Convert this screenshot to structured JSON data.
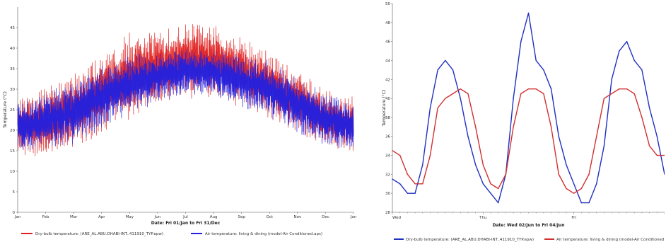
{
  "chart_data": [
    {
      "type": "line",
      "id": "annual",
      "xlabel": "Date: Fri 01/Jan to Fri 31/Dec",
      "ylabel": "Temperature (°C)",
      "ylim": [
        0,
        50
      ],
      "yticks": [
        0,
        5,
        10,
        15,
        20,
        25,
        30,
        35,
        40,
        45
      ],
      "categories": [
        "Jan",
        "Feb",
        "Mar",
        "Apr",
        "May",
        "Jun",
        "Jul",
        "Aug",
        "Sep",
        "Oct",
        "Nov",
        "Dec",
        "Jan"
      ],
      "grid": false,
      "legend_position": "bottom",
      "series": [
        {
          "name": "Dry-bulb temperature: (ARE_AL.ABU.DHABI-INT..411910_TYP.epw)",
          "color": "#e02020",
          "monthly_mean": [
            21,
            22,
            25,
            29,
            33,
            35,
            37,
            37,
            34,
            31,
            27,
            23,
            21
          ],
          "monthly_amplitude": [
            5,
            6,
            6.5,
            7,
            7.5,
            7,
            6.5,
            6.5,
            6,
            6,
            5.5,
            5,
            5
          ]
        },
        {
          "name": "Air temperature: living & dining (model-Air Conditioned.aps)",
          "color": "#2020e0",
          "monthly_mean": [
            21,
            22,
            24.5,
            28,
            31,
            33,
            34.5,
            34,
            32,
            30,
            26.5,
            22.5,
            21
          ],
          "monthly_amplitude": [
            4.5,
            5,
            5.5,
            5.5,
            5,
            4.5,
            4,
            4,
            4.5,
            5,
            5,
            4.5,
            4.5
          ]
        }
      ]
    },
    {
      "type": "line",
      "id": "three-day",
      "xlabel": "Date: Wed 02/Jun to Fri 04/Jun",
      "ylabel": "Temperature (°C)",
      "ylim": [
        28,
        50
      ],
      "yticks": [
        28,
        30,
        32,
        34,
        36,
        38,
        40,
        42,
        44,
        46,
        48,
        50
      ],
      "categories": [
        "Wed",
        "Thu",
        "Fri"
      ],
      "x": [
        0,
        0.0833,
        0.1667,
        0.25,
        0.3333,
        0.4167,
        0.5,
        0.5833,
        0.6667,
        0.75,
        0.8333,
        0.9167,
        1.0,
        1.0833,
        1.1667,
        1.25,
        1.3333,
        1.4167,
        1.5,
        1.5833,
        1.6667,
        1.75,
        1.8333,
        1.9167,
        2.0,
        2.0833,
        2.1667,
        2.25,
        2.3333,
        2.4167,
        2.5,
        2.5833,
        2.6667,
        2.75,
        2.8333,
        2.9167,
        3.0
      ],
      "grid": false,
      "legend_position": "bottom",
      "series": [
        {
          "name": "Dry-bulb temperature: (ARE_AL.ABU.DHABI-INT..411910_TYP.epw)",
          "color": "#2030c0",
          "values": [
            31.5,
            31,
            30,
            30,
            33,
            39,
            43,
            44,
            43,
            40,
            36,
            33,
            31,
            30,
            29,
            32,
            40,
            46,
            49,
            44,
            43,
            41,
            36,
            33,
            31,
            29,
            29,
            31,
            35,
            42,
            45,
            46,
            44,
            43,
            39,
            36,
            32
          ]
        },
        {
          "name": "Air temperature: living & dining (model-Air Conditioned.aps)",
          "color": "#d03030",
          "values": [
            34.5,
            34,
            32,
            31,
            31,
            34,
            39,
            40,
            40.5,
            41,
            40.5,
            37,
            33,
            31,
            30.5,
            32,
            37,
            40.5,
            41,
            41,
            40.5,
            37,
            32,
            30.5,
            30,
            30.5,
            32,
            36,
            40,
            40.5,
            41,
            41,
            40.5,
            38,
            35,
            34,
            34
          ]
        }
      ]
    }
  ]
}
